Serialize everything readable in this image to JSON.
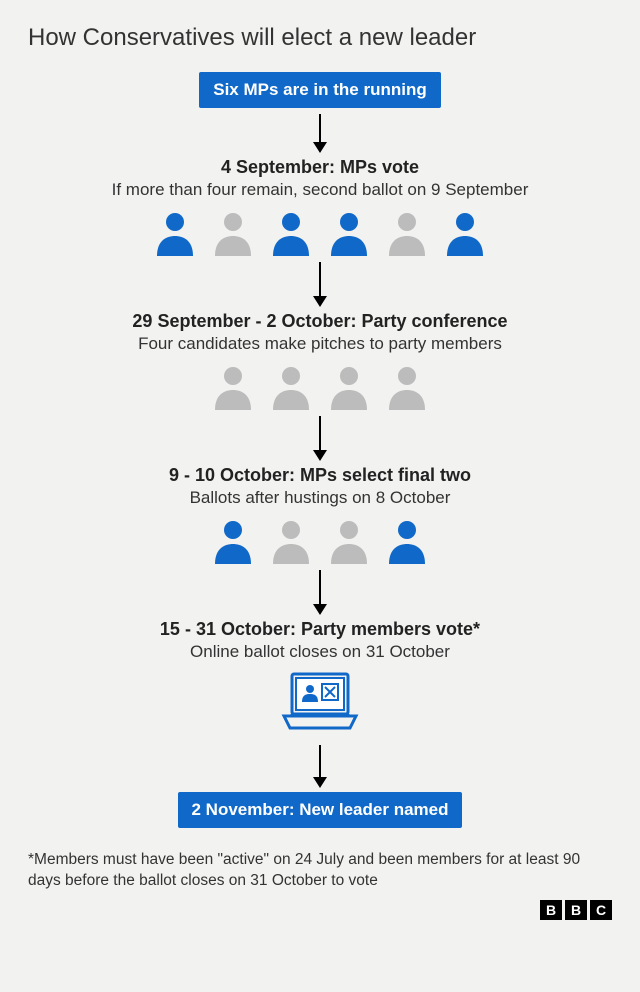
{
  "title": "How Conservatives will elect a new leader",
  "colors": {
    "blue": "#1069c9",
    "grey": "#bcbcbc",
    "background": "#f2f2f0",
    "text": "#222222"
  },
  "start_box": "Six MPs are in the running",
  "steps": [
    {
      "title": "4 September: MPs vote",
      "sub": "If more than four remain, second ballot on 9 September",
      "people": [
        "blue",
        "grey",
        "blue",
        "blue",
        "grey",
        "blue"
      ]
    },
    {
      "title": "29 September - 2 October: Party conference",
      "sub": "Four candidates make pitches to party members",
      "people": [
        "grey",
        "grey",
        "grey",
        "grey"
      ]
    },
    {
      "title": "9 - 10 October: MPs select final two",
      "sub": "Ballots after hustings on 8 October",
      "people": [
        "blue",
        "grey",
        "grey",
        "blue"
      ]
    },
    {
      "title": "15 - 31 October: Party members vote*",
      "sub": "Online ballot closes on 31 October",
      "laptop": true
    }
  ],
  "end_box": "2 November: New leader named",
  "footnote": "*Members must have been \"active\" on 24 July and been members for at least 90 days before the ballot closes on 31 October to vote",
  "logo": [
    "B",
    "B",
    "C"
  ],
  "arrow_heights": [
    28,
    34,
    34,
    34,
    32
  ]
}
